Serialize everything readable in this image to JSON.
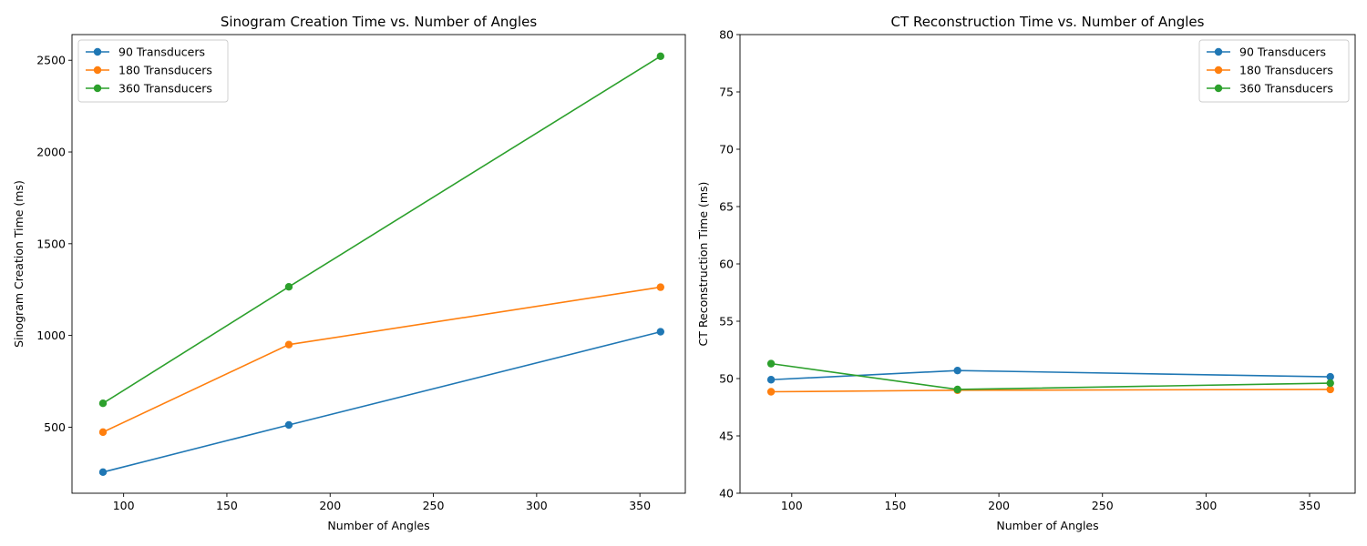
{
  "chart_data": [
    {
      "type": "line",
      "title": "Sinogram Creation Time vs. Number of Angles",
      "xlabel": "Number of Angles",
      "ylabel": "Sinogram Creation Time (ms)",
      "xlim": [
        75,
        372
      ],
      "ylim": [
        140,
        2640
      ],
      "xticks": [
        100,
        150,
        200,
        250,
        300,
        350
      ],
      "yticks": [
        500,
        1000,
        1500,
        2000,
        2500
      ],
      "legend_position": "top-left",
      "grid": false,
      "x": [
        90,
        180,
        360
      ],
      "series": [
        {
          "name": "90 Transducers",
          "color": "#1f77b4",
          "values": [
            255,
            512,
            1020
          ]
        },
        {
          "name": "180 Transducers",
          "color": "#ff7f0e",
          "values": [
            473,
            950,
            1263
          ]
        },
        {
          "name": "360 Transducers",
          "color": "#2ca02c",
          "values": [
            630,
            1265,
            2522
          ]
        }
      ]
    },
    {
      "type": "line",
      "title": "CT Reconstruction Time vs. Number of Angles",
      "xlabel": "Number of Angles",
      "ylabel": "CT Reconstruction Time (ms)",
      "xlim": [
        75,
        372
      ],
      "ylim": [
        40,
        80
      ],
      "xticks": [
        100,
        150,
        200,
        250,
        300,
        350
      ],
      "yticks": [
        40,
        45,
        50,
        55,
        60,
        65,
        70,
        75,
        80
      ],
      "legend_position": "top-right",
      "grid": false,
      "x": [
        90,
        180,
        360
      ],
      "series": [
        {
          "name": "90 Transducers",
          "color": "#1f77b4",
          "values": [
            49.9,
            50.7,
            50.15
          ]
        },
        {
          "name": "180 Transducers",
          "color": "#ff7f0e",
          "values": [
            48.85,
            48.98,
            49.05
          ]
        },
        {
          "name": "360 Transducers",
          "color": "#2ca02c",
          "values": [
            51.3,
            49.05,
            49.6
          ]
        }
      ]
    }
  ]
}
